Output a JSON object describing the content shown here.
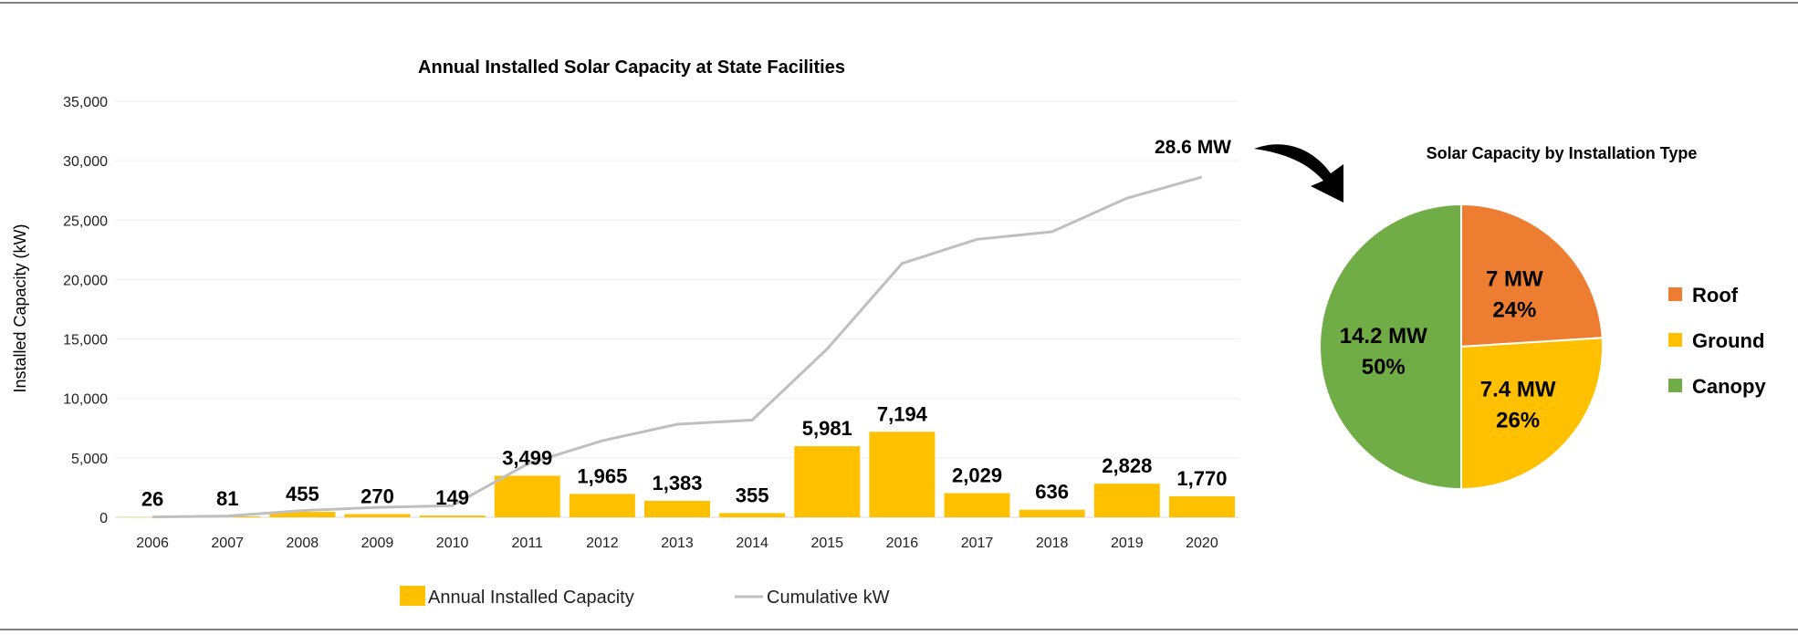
{
  "colors": {
    "bar": "#FFC000",
    "line": "#BFBFBF",
    "roof": "#ED7D31",
    "ground": "#FFC000",
    "canopy": "#70AD47",
    "grid": "#EDEDED",
    "border": "#808080"
  },
  "chart_data": [
    {
      "type": "bar",
      "title": "Annual Installed Solar Capacity at State Facilities",
      "ylabel": "Installed Capacity (kW)",
      "xlabel": "",
      "ylim": [
        0,
        35000
      ],
      "yticks": [
        0,
        5000,
        10000,
        15000,
        20000,
        25000,
        30000,
        35000
      ],
      "ytick_labels": [
        "0",
        "5,000",
        "10,000",
        "15,000",
        "20,000",
        "25,000",
        "30,000",
        "35,000"
      ],
      "grid": true,
      "legend_position": "bottom",
      "categories": [
        "2006",
        "2007",
        "2008",
        "2009",
        "2010",
        "2011",
        "2012",
        "2013",
        "2014",
        "2015",
        "2016",
        "2017",
        "2018",
        "2019",
        "2020"
      ],
      "series": [
        {
          "name": "Annual Installed Capacity",
          "type": "bar",
          "values": [
            26,
            81,
            455,
            270,
            149,
            3499,
            1965,
            1383,
            355,
            5981,
            7194,
            2029,
            636,
            2828,
            1770
          ],
          "labels": [
            "26",
            "81",
            "455",
            "270",
            "149",
            "3,499",
            "1,965",
            "1,383",
            "355",
            "5,981",
            "7,194",
            "2,029",
            "636",
            "2,828",
            "1,770"
          ]
        },
        {
          "name": "Cumulative kW",
          "type": "line",
          "values": [
            26,
            107,
            562,
            832,
            981,
            4480,
            6445,
            7828,
            8183,
            14164,
            21358,
            23387,
            24023,
            26851,
            28621
          ]
        }
      ],
      "annotation": "28.6 MW"
    },
    {
      "type": "pie",
      "title": "Solar Capacity by Installation Type",
      "legend_position": "right",
      "slices": [
        {
          "name": "Roof",
          "value_mw": 7,
          "percent": 24,
          "label": "7 MW",
          "pct_label": "24%"
        },
        {
          "name": "Ground",
          "value_mw": 7.4,
          "percent": 26,
          "label": "7.4 MW",
          "pct_label": "26%"
        },
        {
          "name": "Canopy",
          "value_mw": 14.2,
          "percent": 50,
          "label": "14.2 MW",
          "pct_label": "50%"
        }
      ]
    }
  ]
}
